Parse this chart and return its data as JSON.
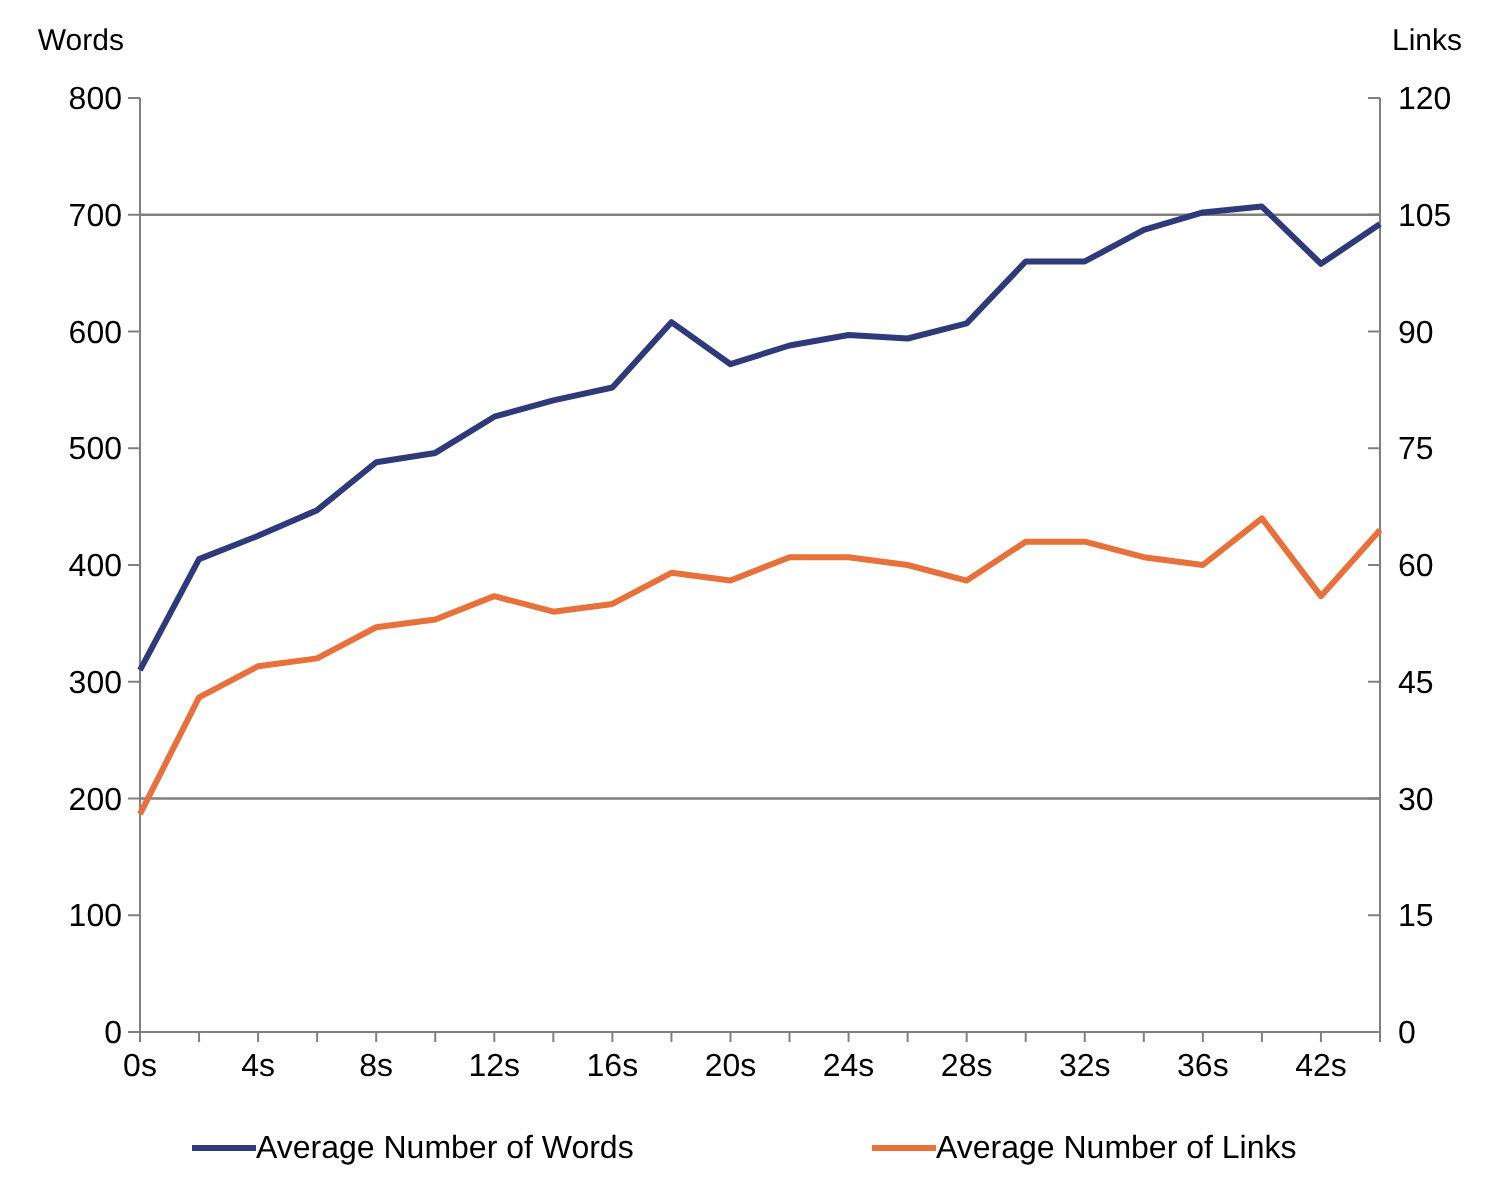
{
  "chart_data": {
    "type": "line",
    "ylabel": "Words",
    "y2label": "Links",
    "categories": [
      "0s",
      null,
      "4s",
      null,
      "8s",
      null,
      "12s",
      null,
      "16s",
      null,
      "20s",
      null,
      "24s",
      null,
      "28s",
      null,
      "32s",
      null,
      "36s",
      null,
      "42s",
      null
    ],
    "series": [
      {
        "name": "Average Number of Words",
        "color": "#2e3a7a",
        "values": [
          310,
          405,
          425,
          447,
          488,
          496,
          527,
          541,
          552,
          608,
          572,
          588,
          597,
          594,
          607,
          660,
          660,
          687,
          702,
          707,
          658,
          692
        ]
      },
      {
        "name": "Average Number of Links",
        "color": "#e8703a",
        "axis": "y2",
        "values": [
          28,
          43,
          47,
          48,
          52,
          53,
          56,
          54,
          55,
          59,
          58,
          61,
          61,
          60,
          58,
          63,
          63,
          61,
          60,
          66,
          56,
          64.5
        ]
      }
    ],
    "ylim": [
      0,
      800
    ],
    "yticks": [
      0,
      100,
      200,
      300,
      400,
      500,
      600,
      700,
      800
    ],
    "y2lim": [
      0,
      120
    ],
    "y2ticks": [
      0,
      15,
      30,
      45,
      60,
      75,
      90,
      105,
      120
    ],
    "ref_lines": [
      {
        "axis": "y",
        "value": 200,
        "color": "#808080"
      },
      {
        "axis": "y",
        "value": 700,
        "color": "#808080"
      }
    ],
    "legend": "bottom",
    "marker": "none",
    "line_style": "solid"
  }
}
